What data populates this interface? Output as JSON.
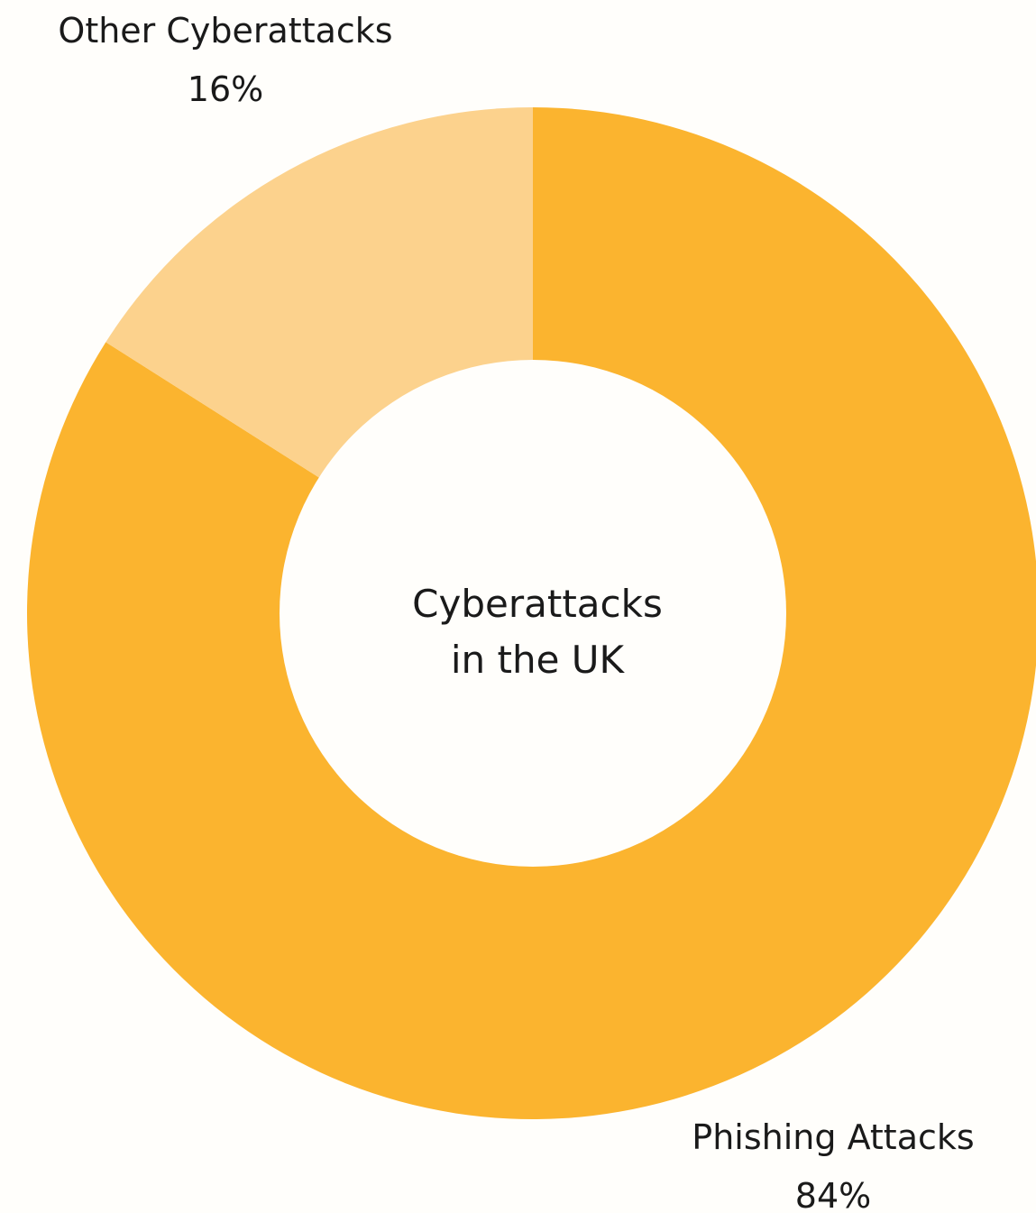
{
  "chart_data": {
    "type": "pie",
    "style": "donut",
    "center_label_lines": [
      "Cyberattacks",
      "in the UK"
    ],
    "slices": [
      {
        "label": "Phishing Attacks",
        "value": 84,
        "value_label": "84%",
        "color": "#fbb42f"
      },
      {
        "label": "Other Cyberattacks",
        "value": 16,
        "value_label": "16%",
        "color": "#fcd28d"
      }
    ],
    "start_angle_deg": 0,
    "direction": "clockwise",
    "legend": "none"
  },
  "colors": {
    "background": "#fffefb",
    "text": "#1a1a1a"
  }
}
